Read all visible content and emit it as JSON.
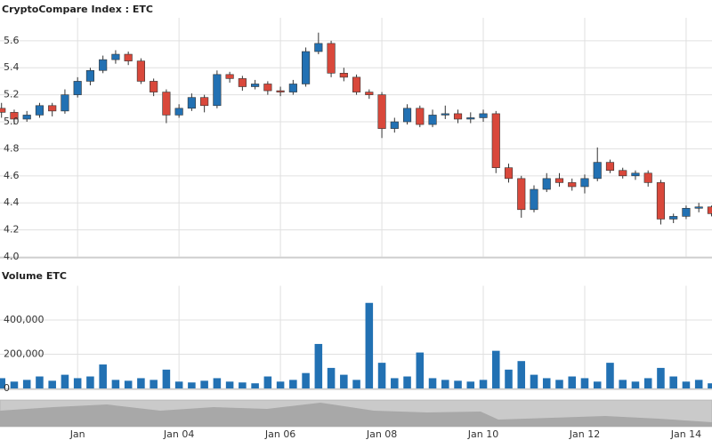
{
  "chart_data": [
    {
      "type": "candlestick",
      "title": "CryptoCompare Index : ETC",
      "x": [
        0.5,
        0.75,
        1,
        1.25,
        1.5,
        1.75,
        2,
        2.25,
        2.5,
        2.75,
        3,
        3.25,
        3.5,
        3.75,
        4,
        4.25,
        4.5,
        4.75,
        5,
        5.25,
        5.5,
        5.75,
        6,
        6.25,
        6.5,
        6.75,
        7,
        7.25,
        7.5,
        7.75,
        8,
        8.25,
        8.5,
        8.75,
        9,
        9.25,
        9.5,
        9.75,
        10,
        10.25,
        10.5,
        10.75,
        11,
        11.25,
        11.5,
        11.75,
        12,
        12.25,
        12.5,
        12.75,
        13,
        13.25,
        13.5,
        13.75,
        14,
        14.25,
        14.5
      ],
      "open": [
        5.1,
        5.07,
        5.02,
        5.05,
        5.12,
        5.08,
        5.2,
        5.3,
        5.38,
        5.46,
        5.5,
        5.45,
        5.3,
        5.22,
        5.05,
        5.1,
        5.18,
        5.12,
        5.35,
        5.32,
        5.26,
        5.28,
        5.23,
        5.22,
        5.28,
        5.52,
        5.58,
        5.36,
        5.33,
        5.22,
        5.2,
        4.95,
        5.0,
        5.1,
        4.98,
        5.05,
        5.06,
        5.02,
        5.03,
        5.06,
        4.66,
        4.58,
        4.35,
        4.5,
        4.58,
        4.55,
        4.52,
        4.58,
        4.7,
        4.64,
        4.6,
        4.62,
        4.55,
        4.28,
        4.3,
        4.36,
        4.37
      ],
      "high": [
        5.14,
        5.09,
        5.08,
        5.14,
        5.14,
        5.24,
        5.33,
        5.4,
        5.49,
        5.53,
        5.52,
        5.47,
        5.32,
        5.24,
        5.13,
        5.21,
        5.2,
        5.38,
        5.37,
        5.34,
        5.31,
        5.3,
        5.26,
        5.31,
        5.55,
        5.66,
        5.6,
        5.4,
        5.35,
        5.24,
        5.22,
        5.03,
        5.13,
        5.12,
        5.09,
        5.12,
        5.09,
        5.07,
        5.09,
        5.08,
        4.69,
        4.6,
        4.53,
        4.62,
        4.62,
        4.58,
        4.61,
        4.81,
        4.72,
        4.66,
        4.64,
        4.64,
        4.57,
        4.32,
        4.38,
        4.4,
        4.38
      ],
      "low": [
        5.03,
        4.98,
        5.0,
        5.03,
        5.04,
        5.06,
        5.18,
        5.27,
        5.36,
        5.43,
        5.42,
        5.28,
        5.19,
        4.99,
        5.03,
        5.08,
        5.07,
        5.1,
        5.29,
        5.23,
        5.24,
        5.2,
        5.19,
        5.2,
        5.26,
        5.5,
        5.33,
        5.3,
        5.2,
        5.17,
        4.88,
        4.92,
        4.98,
        4.96,
        4.96,
        5.02,
        4.99,
        4.99,
        5.0,
        4.62,
        4.55,
        4.29,
        4.33,
        4.48,
        4.52,
        4.49,
        4.47,
        4.56,
        4.62,
        4.58,
        4.57,
        4.52,
        4.24,
        4.25,
        4.28,
        4.33,
        4.3
      ],
      "close": [
        5.07,
        5.02,
        5.05,
        5.12,
        5.08,
        5.2,
        5.3,
        5.38,
        5.46,
        5.5,
        5.45,
        5.3,
        5.22,
        5.05,
        5.1,
        5.18,
        5.12,
        5.35,
        5.32,
        5.26,
        5.28,
        5.23,
        5.22,
        5.28,
        5.52,
        5.58,
        5.36,
        5.33,
        5.22,
        5.2,
        4.95,
        5.0,
        5.1,
        4.98,
        5.05,
        5.06,
        5.02,
        5.03,
        5.06,
        4.66,
        4.58,
        4.35,
        4.5,
        4.58,
        4.55,
        4.52,
        4.58,
        4.7,
        4.64,
        4.6,
        4.62,
        4.55,
        4.28,
        4.3,
        4.36,
        4.37,
        4.32
      ],
      "up_color": "#2271b3",
      "down_color": "#d9483b",
      "xlim": [
        0.47,
        14.51
      ],
      "xticks": [
        {
          "value": 2,
          "label": "Jan"
        },
        {
          "value": 4,
          "label": "Jan 04"
        },
        {
          "value": 6,
          "label": "Jan 06"
        },
        {
          "value": 8,
          "label": "Jan 08"
        },
        {
          "value": 10,
          "label": "Jan 10"
        },
        {
          "value": 12,
          "label": "Jan 12"
        },
        {
          "value": 14,
          "label": "Jan 14"
        }
      ],
      "ylim": [
        4.0,
        5.77
      ],
      "yticks": [
        {
          "value": 4,
          "label": "4.0"
        },
        4.2,
        4.4,
        4.6,
        4.8,
        {
          "value": 5,
          "label": "5.0"
        },
        5.2,
        5.4,
        5.6
      ],
      "grid": true
    },
    {
      "type": "bar",
      "title": "Volume ETC",
      "values": [
        60000,
        40000,
        50000,
        70000,
        45000,
        80000,
        60000,
        70000,
        140000,
        50000,
        45000,
        60000,
        50000,
        110000,
        40000,
        35000,
        45000,
        60000,
        40000,
        35000,
        30000,
        70000,
        40000,
        50000,
        90000,
        260000,
        120000,
        80000,
        50000,
        500000,
        150000,
        60000,
        70000,
        210000,
        60000,
        50000,
        45000,
        40000,
        50000,
        220000,
        110000,
        160000,
        80000,
        60000,
        50000,
        70000,
        60000,
        40000,
        150000,
        50000,
        40000,
        60000,
        120000,
        70000,
        40000,
        50000,
        30000
      ],
      "color": "#2271b3",
      "ylim": [
        0,
        600000
      ],
      "yticks": [
        0,
        {
          "value": 200000,
          "label": "200,000"
        },
        {
          "value": 400000,
          "label": "400,000"
        }
      ],
      "grid": true
    }
  ]
}
